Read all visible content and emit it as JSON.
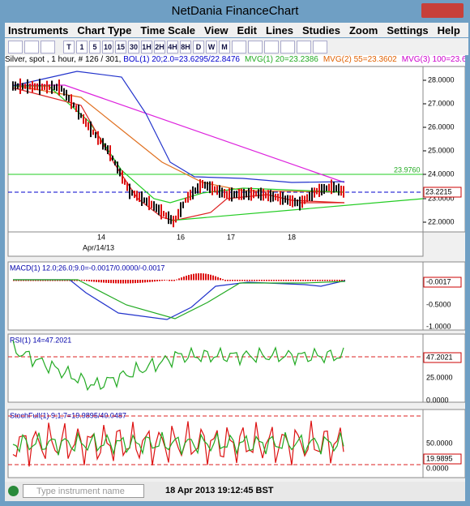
{
  "window": {
    "title": "NetDania FinanceChart"
  },
  "menu": [
    "Instruments",
    "Chart Type",
    "Time Scale",
    "View",
    "Edit",
    "Lines",
    "Studies",
    "Zoom",
    "Settings",
    "Help"
  ],
  "toolbar": [
    "T",
    "1",
    "5",
    "10",
    "15",
    "30",
    "1H",
    "2H",
    "4H",
    "8H",
    "D",
    "W",
    "M"
  ],
  "chart_info": {
    "instrument": "Silver, spot , 1 hour, # 126 / 301, ",
    "indicators": [
      {
        "text": "BOL(1) 20;2.0=23.6295/22.8476",
        "color": "#0000cc"
      },
      {
        "text": "MVG(1) 20=23.2386",
        "color": "#22aa22"
      },
      {
        "text": "MVG(2) 55=23.3602",
        "color": "#e06000"
      },
      {
        "text": "MVG(3) 100=23.6",
        "color": "#cc00cc"
      }
    ]
  },
  "main_panel": {
    "price_labels": [
      "28.0000",
      "27.0000",
      "26.0000",
      "25.0000",
      "24.0000",
      "23.0000",
      "22.0000"
    ],
    "line_label": "23.9760",
    "last_price": "23.2215",
    "date_labels": [
      "14",
      "16",
      "17",
      "18"
    ],
    "date_caption": "Apr/14/13"
  },
  "macd_panel": {
    "title": "MACD(1) 12.0;26.0;9.0=-0.0017/0.0000/-0.0017",
    "labels": [
      "-0.0017",
      "-0.5000",
      "-1.0000"
    ]
  },
  "rsi_panel": {
    "title": "RSI(1) 14=47.2021",
    "labels": [
      "47.2021",
      "25.0000",
      "0.0000"
    ]
  },
  "stoch_panel": {
    "title": "StochFull(1) 9;1;7=19.9895/40.0487",
    "labels": [
      "50.0000",
      "19.9895",
      "0.0000"
    ]
  },
  "status": {
    "placeholder": "Type instrument name",
    "time": "18 Apr 2013 19:12:45 BST"
  }
}
